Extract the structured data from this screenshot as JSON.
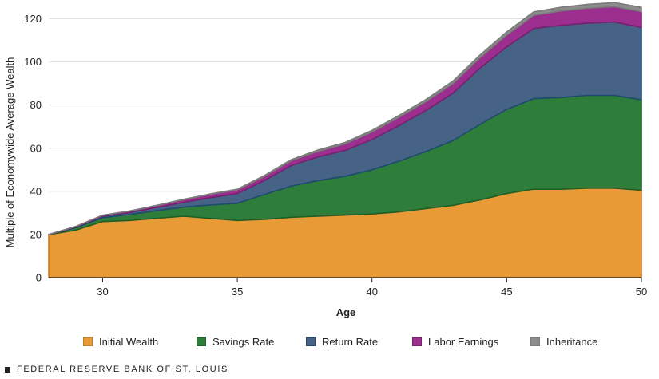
{
  "footer": {
    "text": "FEDERAL RESERVE BANK OF ST. LOUIS"
  },
  "chart_data": {
    "type": "area",
    "stacked": true,
    "title": "",
    "xlabel": "Age",
    "ylabel": "Multiple of Economywide Average Wealth",
    "xlim": [
      28,
      50
    ],
    "ylim": [
      0,
      125
    ],
    "xticks": [
      30,
      35,
      40,
      45,
      50
    ],
    "yticks": [
      0,
      20,
      40,
      60,
      80,
      100,
      120
    ],
    "grid": "horizontal",
    "legend": "bottom",
    "x": [
      28,
      29,
      30,
      31,
      32,
      33,
      34,
      35,
      36,
      37,
      38,
      39,
      40,
      41,
      42,
      43,
      44,
      45,
      46,
      47,
      48,
      49,
      50
    ],
    "series": [
      {
        "name": "Initial Wealth",
        "color": "#E89A37",
        "stroke": "#C47E22",
        "values": [
          20,
          22,
          26,
          26.5,
          27.5,
          28.5,
          27.5,
          26.5,
          27,
          28,
          28.5,
          29,
          29.5,
          30.5,
          32,
          33.5,
          36,
          39,
          41,
          41,
          41.5,
          41.5,
          40.5
        ]
      },
      {
        "name": "Savings Rate",
        "color": "#2E7D3A",
        "stroke": "#1F5E29",
        "values": [
          0,
          1.2,
          1.8,
          2.8,
          3.6,
          4.2,
          6.2,
          8,
          11.5,
          14.5,
          16.5,
          18,
          20.5,
          23.5,
          26.5,
          30,
          35,
          39,
          42,
          42.5,
          43,
          43,
          42
        ]
      },
      {
        "name": "Return Rate",
        "color": "#466385",
        "stroke": "#1E4A73",
        "values": [
          0,
          0.3,
          0.7,
          0.9,
          1.4,
          2.2,
          3.4,
          4.5,
          6.5,
          9.5,
          11,
          12,
          14,
          16.5,
          19,
          22,
          26,
          29,
          32.5,
          33.5,
          33.5,
          34,
          33.5
        ]
      },
      {
        "name": "Labor Earnings",
        "color": "#9B2E8E",
        "stroke": "#7A1F70",
        "values": [
          0,
          0.2,
          0.4,
          0.6,
          0.9,
          1.2,
          1.5,
          1.7,
          1.9,
          2.2,
          2.6,
          3,
          3.5,
          3.8,
          4.1,
          4.4,
          4.8,
          5.4,
          6.1,
          6.6,
          6.9,
          7.1,
          7.3
        ]
      },
      {
        "name": "Inheritance",
        "color": "#8C8C8C",
        "stroke": "#7A7A7A",
        "values": [
          0,
          0,
          0,
          0.1,
          0.1,
          0.2,
          0.2,
          0.3,
          0.4,
          0.5,
          0.6,
          0.7,
          0.8,
          0.9,
          1,
          1.2,
          1.3,
          1.5,
          1.6,
          1.7,
          1.8,
          1.9,
          2
        ]
      }
    ]
  }
}
